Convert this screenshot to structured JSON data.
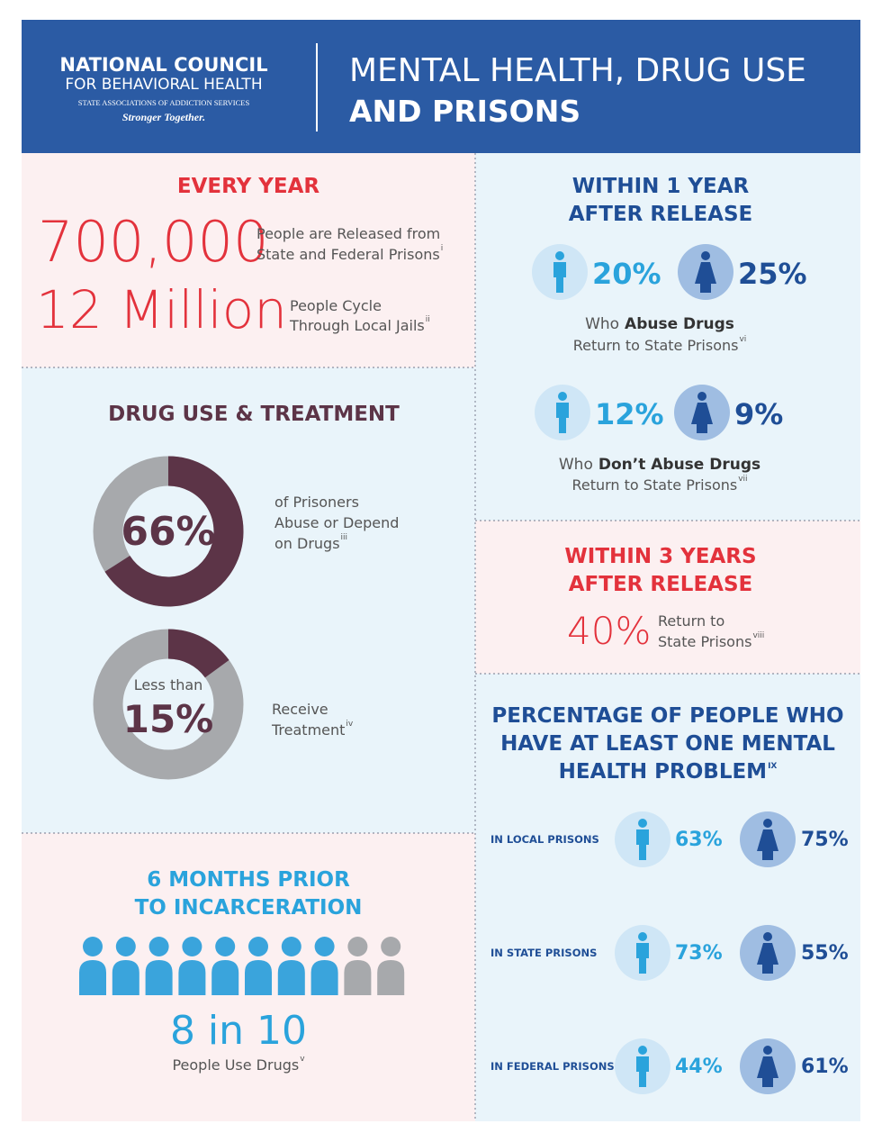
{
  "header": {
    "org_name": "NATIONAL COUNCIL",
    "org_sub": "FOR BEHAVIORAL HEALTH",
    "org_assoc": "STATE ASSOCIATIONS OF ADDICTION SERVICES",
    "tagline": "Stronger Together.",
    "title_line1": "MENTAL HEALTH, DRUG USE",
    "title_line2": "AND PRISONS"
  },
  "every_year": {
    "heading": "EVERY YEAR",
    "stats": [
      {
        "figure": "700,000",
        "text_lines": [
          "People are Released from",
          "State and Federal Prisons"
        ],
        "note": "i"
      },
      {
        "figure": "12 Million",
        "text_lines": [
          "People Cycle",
          "Through Local Jails"
        ],
        "note": "ii"
      }
    ]
  },
  "drug_use": {
    "heading": "DRUG USE & TREATMENT",
    "donuts": [
      {
        "value": 66,
        "label": "66%",
        "text_lines": [
          "of Prisoners",
          "Abuse or Depend",
          "on Drugs"
        ],
        "note": "iii"
      },
      {
        "prefix": "Less than",
        "value": 15,
        "label": "15%",
        "text_lines": [
          "Receive",
          "Treatment"
        ],
        "note": "iv"
      }
    ]
  },
  "six_months": {
    "heading_lines": [
      "6 MONTHS PRIOR",
      "TO INCARCERATION"
    ],
    "people": {
      "highlighted": 8,
      "total": 10
    },
    "figure": "8 in 10",
    "caption": "People Use Drugs",
    "note": "v"
  },
  "within_1_year": {
    "heading_lines": [
      "WITHIN 1 YEAR",
      "AFTER RELEASE"
    ],
    "groups": [
      {
        "male": "20%",
        "female": "25%",
        "line1_pre": "Who",
        "line1_bold": "Abuse Drugs",
        "line2": "Return to State Prisons",
        "note": "vi"
      },
      {
        "male": "12%",
        "female": "9%",
        "line1_pre": "Who",
        "line1_bold": "Don’t Abuse Drugs",
        "line2": "Return to State Prisons",
        "note": "vii"
      }
    ]
  },
  "within_3_years": {
    "heading_lines": [
      "WITHIN 3 YEARS",
      "AFTER RELEASE"
    ],
    "figure": "40%",
    "text_lines": [
      "Return to",
      "State Prisons"
    ],
    "note": "viii"
  },
  "mental_health": {
    "heading_lines": [
      "PERCENTAGE OF PEOPLE WHO",
      "HAVE AT LEAST ONE MENTAL",
      "HEALTH PROBLEM"
    ],
    "note": "IX",
    "rows": [
      {
        "label": "IN LOCAL PRISONS",
        "male": "63%",
        "female": "75%"
      },
      {
        "label": "IN STATE PRISONS",
        "male": "73%",
        "female": "55%"
      },
      {
        "label": "IN FEDERAL PRISONS",
        "male": "44%",
        "female": "61%"
      }
    ]
  }
}
